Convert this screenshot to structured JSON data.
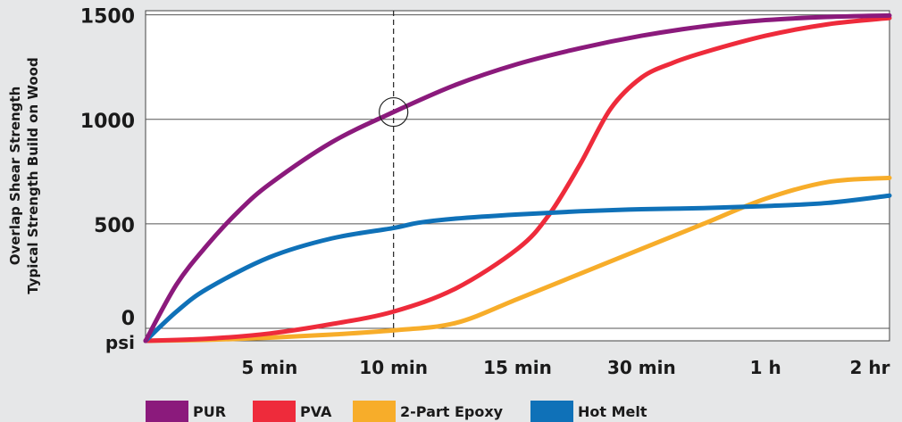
{
  "colors": {
    "background": "#e6e7e8",
    "plot_background": "#ffffff",
    "gridline": "#555555",
    "marker_line": "#222222",
    "PUR": "#8b1a7c",
    "PVA": "#ee2b3b",
    "2-Part Epoxy": "#f7ad2a",
    "Hot Melt": "#0f71b8"
  },
  "chart_data": {
    "type": "line",
    "title": "",
    "ylabel": [
      "Overlap Shear Strength",
      "Typical Strength Build on Wood"
    ],
    "yunit": "psi",
    "xlabel": "",
    "ylim": [
      -60,
      1520
    ],
    "xlim": [
      0,
      6
    ],
    "y_ticks": [
      0,
      500,
      1000,
      1500
    ],
    "y_tick_labels": [
      "0",
      "500",
      "1000",
      "1500"
    ],
    "x_ticks": [
      1,
      2,
      3,
      4,
      5,
      6
    ],
    "x_tick_labels": [
      "5 min",
      "10 min",
      "15 min",
      "30 min",
      "1 h",
      "2 hr"
    ],
    "grid": {
      "horizontal": true,
      "vertical": false
    },
    "reference_line": {
      "x": 2,
      "style": "dashed"
    },
    "highlight_point": {
      "series": "PUR",
      "x": 2,
      "y": 1035
    },
    "legend": {
      "position": "bottom",
      "entries": [
        "PUR",
        "PVA",
        "2-Part Epoxy",
        "Hot Melt"
      ]
    },
    "series": [
      {
        "name": "PUR",
        "x": [
          0,
          0.25,
          0.5,
          0.75,
          1,
          1.5,
          2,
          2.5,
          3,
          3.5,
          4,
          4.5,
          5,
          5.5,
          6
        ],
        "y": [
          -60,
          210,
          400,
          560,
          690,
          890,
          1035,
          1165,
          1265,
          1340,
          1400,
          1445,
          1475,
          1490,
          1497
        ]
      },
      {
        "name": "PVA",
        "x": [
          0,
          0.5,
          1,
          1.5,
          2,
          2.5,
          3,
          3.25,
          3.5,
          3.75,
          4,
          4.25,
          4.5,
          5,
          5.5,
          6
        ],
        "y": [
          -60,
          -50,
          -25,
          20,
          80,
          190,
          380,
          540,
          780,
          1050,
          1200,
          1270,
          1320,
          1400,
          1455,
          1485
        ]
      },
      {
        "name": "2-Part Epoxy",
        "x": [
          0,
          0.5,
          1,
          1.5,
          2,
          2.5,
          3,
          3.5,
          4,
          4.5,
          5,
          5.5,
          6
        ],
        "y": [
          -60,
          -55,
          -45,
          -30,
          -10,
          25,
          140,
          260,
          380,
          500,
          620,
          700,
          720
        ]
      },
      {
        "name": "Hot Melt",
        "x": [
          0,
          0.25,
          0.5,
          1,
          1.5,
          2,
          2.2,
          2.5,
          3,
          3.5,
          4,
          4.5,
          5,
          5.5,
          6
        ],
        "y": [
          -60,
          80,
          190,
          340,
          430,
          480,
          505,
          525,
          545,
          560,
          570,
          575,
          585,
          600,
          635
        ]
      }
    ]
  }
}
